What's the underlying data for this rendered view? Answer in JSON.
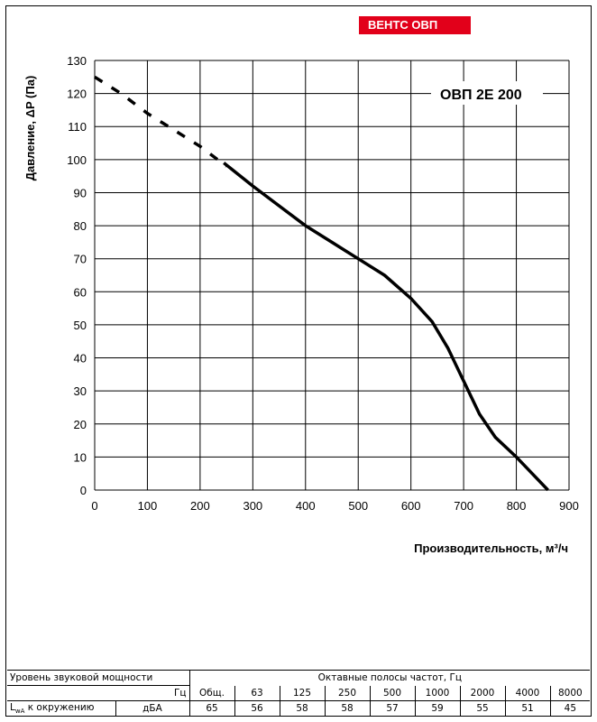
{
  "brand": {
    "label": "ВЕНТС ОВП",
    "color": "#e2001a"
  },
  "chart_data": {
    "type": "line",
    "title": "ОВП 2Е 200",
    "xlabel": "Производительность,  м³/ч",
    "ylabel": "Давление, ΔP (Па)",
    "xlim": [
      0,
      900
    ],
    "ylim": [
      0,
      130
    ],
    "xticks": [
      0,
      100,
      200,
      300,
      400,
      500,
      600,
      700,
      800,
      900
    ],
    "yticks": [
      0,
      10,
      20,
      30,
      40,
      50,
      60,
      70,
      80,
      90,
      100,
      110,
      120,
      130
    ],
    "grid": true,
    "series": [
      {
        "style": "dashed",
        "x": [
          0,
          50,
          100,
          150,
          200,
          250
        ],
        "y": [
          125,
          120,
          114,
          109,
          104,
          98
        ]
      },
      {
        "style": "solid",
        "x": [
          245,
          300,
          350,
          400,
          450,
          500,
          550,
          600,
          640,
          670,
          700,
          730,
          760,
          800,
          830,
          860
        ],
        "y": [
          99,
          92,
          86,
          80,
          75,
          70,
          65,
          58,
          51,
          43,
          33,
          23,
          16,
          10,
          5,
          0
        ]
      }
    ]
  },
  "sound_table": {
    "title": "Уровень звуковой мощности",
    "bands_header": "Октавные полосы частот, Гц",
    "unit_header": "Гц",
    "columns": [
      "Общ.",
      "63",
      "125",
      "250",
      "500",
      "1000",
      "2000",
      "4000",
      "8000"
    ],
    "row": {
      "label_main": "L",
      "label_sub": "wA",
      "label_rest": " к окружению",
      "unit": "дБА",
      "values": [
        "65",
        "56",
        "58",
        "58",
        "57",
        "59",
        "55",
        "51",
        "45"
      ]
    }
  }
}
